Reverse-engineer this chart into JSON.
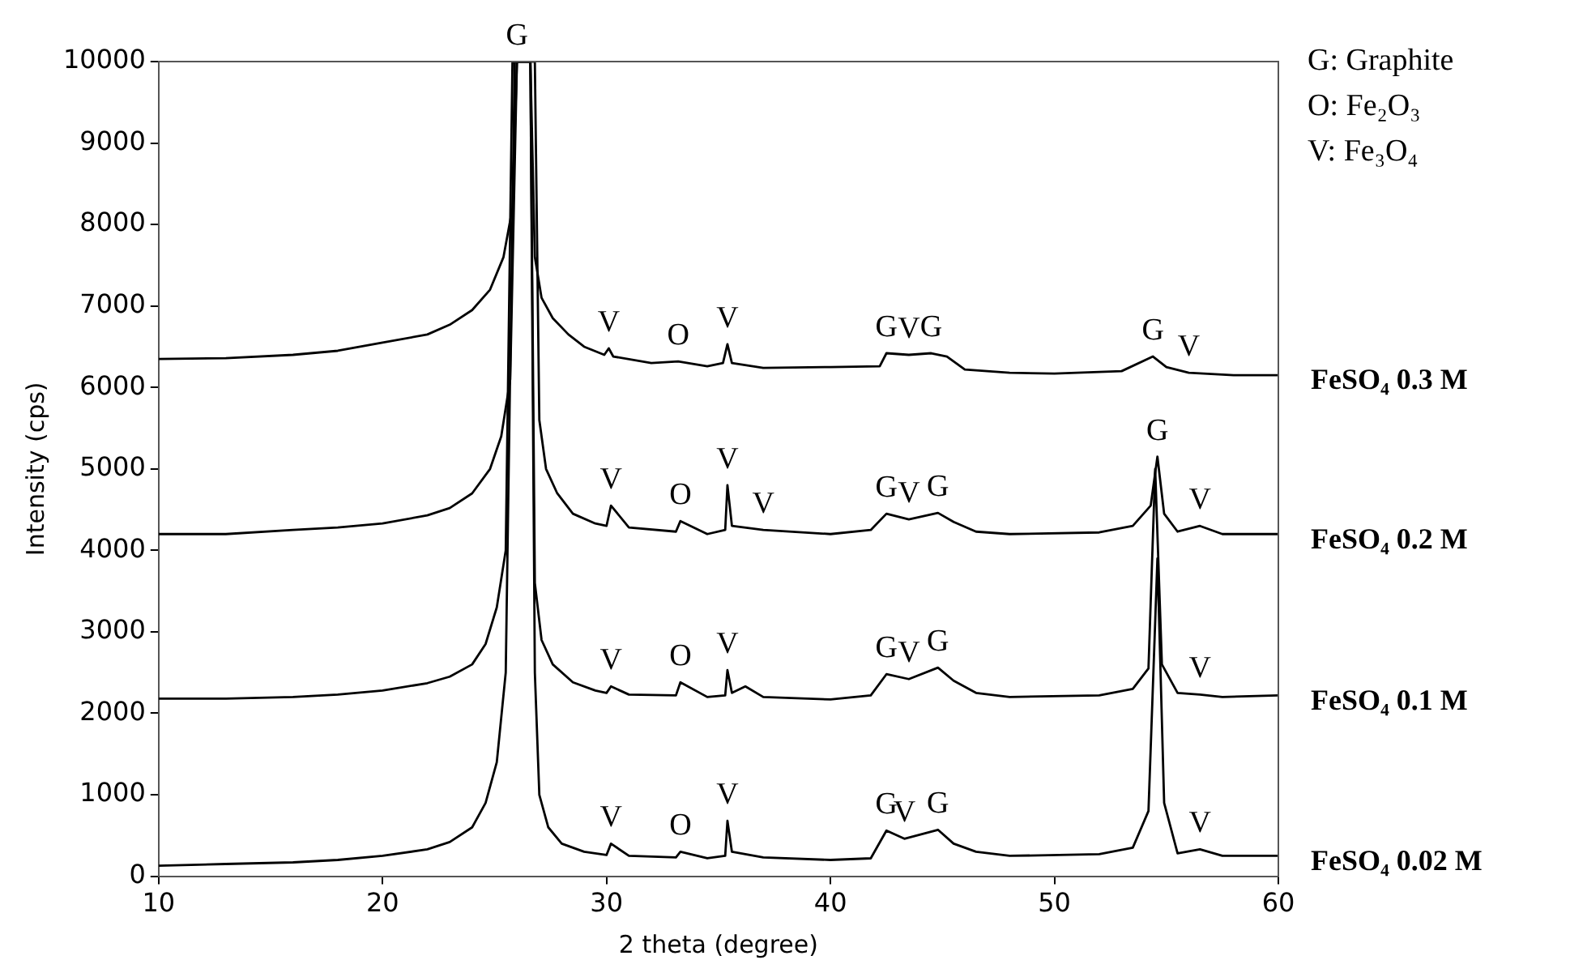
{
  "chart_data": {
    "type": "line",
    "xlabel": "2 theta (degree)",
    "ylabel": "Intensity (cps)",
    "xlim": [
      10,
      60
    ],
    "xticks": [
      10,
      20,
      30,
      40,
      50,
      60
    ],
    "ylim": [
      0,
      10000
    ],
    "yticks": [
      0,
      1000,
      2000,
      3000,
      4000,
      5000,
      6000,
      7000,
      8000,
      9000,
      10000
    ],
    "grid": false,
    "legend": false,
    "marker": "none",
    "line_style": "solid",
    "series": [
      {
        "name": "FeSO₄ 0.3 M",
        "color": "#000000",
        "x": [
          10,
          13,
          16,
          18,
          20,
          22,
          23,
          24,
          24.8,
          25.4,
          25.8,
          26.0,
          26.6,
          26.8,
          27.1,
          27.6,
          28.3,
          29,
          29.9,
          30.1,
          30.3,
          32,
          33.2,
          34.5,
          35.2,
          35.4,
          35.6,
          37,
          40,
          42.2,
          42.5,
          43.5,
          44.5,
          45.2,
          46,
          48,
          50,
          53,
          54.4,
          55,
          56,
          58,
          60
        ],
        "values": [
          6350,
          6360,
          6400,
          6450,
          6550,
          6650,
          6770,
          6950,
          7200,
          7600,
          8200,
          10000,
          10000,
          7600,
          7100,
          6850,
          6650,
          6500,
          6400,
          6480,
          6380,
          6300,
          6320,
          6260,
          6300,
          6530,
          6300,
          6240,
          6250,
          6260,
          6420,
          6400,
          6420,
          6380,
          6220,
          6180,
          6170,
          6200,
          6380,
          6250,
          6180,
          6150,
          6150
        ]
      },
      {
        "name": "FeSO₄ 0.2 M",
        "color": "#000000",
        "x": [
          10,
          13,
          16,
          18,
          20,
          22,
          23,
          24,
          24.8,
          25.3,
          25.7,
          26.0,
          26.8,
          27.0,
          27.3,
          27.8,
          28.5,
          29.5,
          30.0,
          30.2,
          31,
          33.1,
          33.3,
          34.5,
          35.3,
          35.4,
          35.6,
          37,
          40,
          41.8,
          42.5,
          43.5,
          44.8,
          45.5,
          46.5,
          48,
          52,
          53.5,
          54.3,
          54.6,
          54.9,
          55.5,
          56.5,
          57.5,
          60
        ],
        "values": [
          4200,
          4200,
          4250,
          4280,
          4330,
          4430,
          4520,
          4700,
          5000,
          5400,
          6100,
          10000,
          10000,
          5600,
          5000,
          4700,
          4450,
          4330,
          4300,
          4550,
          4280,
          4230,
          4360,
          4200,
          4250,
          4800,
          4300,
          4250,
          4200,
          4250,
          4450,
          4380,
          4460,
          4350,
          4230,
          4200,
          4220,
          4300,
          4550,
          5150,
          4450,
          4230,
          4300,
          4200,
          4200
        ]
      },
      {
        "name": "FeSO₄ 0.1 M",
        "color": "#000000",
        "x": [
          10,
          13,
          16,
          18,
          20,
          22,
          23,
          24,
          24.6,
          25.1,
          25.5,
          25.8,
          26.6,
          26.8,
          27.1,
          27.6,
          28.5,
          29.5,
          30.0,
          30.2,
          31,
          33.1,
          33.3,
          34.5,
          35.3,
          35.4,
          35.6,
          36.2,
          37,
          40,
          41.8,
          42.5,
          43.5,
          44.8,
          45.5,
          46.5,
          48,
          52,
          53.5,
          54.2,
          54.5,
          54.8,
          55.5,
          56.5,
          57.5,
          60
        ],
        "values": [
          2180,
          2180,
          2200,
          2230,
          2280,
          2370,
          2450,
          2600,
          2850,
          3300,
          4000,
          10000,
          10000,
          3600,
          2900,
          2600,
          2380,
          2280,
          2250,
          2330,
          2230,
          2220,
          2380,
          2200,
          2220,
          2530,
          2250,
          2330,
          2200,
          2170,
          2220,
          2480,
          2420,
          2560,
          2400,
          2250,
          2200,
          2220,
          2300,
          2550,
          5000,
          2600,
          2250,
          2230,
          2200,
          2220
        ]
      },
      {
        "name": "FeSO₄ 0.02 M",
        "color": "#000000",
        "x": [
          10,
          13,
          16,
          18,
          20,
          22,
          23,
          24,
          24.6,
          25.1,
          25.5,
          25.9,
          26.6,
          26.8,
          27.0,
          27.4,
          28,
          29,
          30.0,
          30.2,
          31,
          33.1,
          33.3,
          34.5,
          35.3,
          35.4,
          35.6,
          37,
          40,
          41.8,
          42.5,
          43.3,
          44.8,
          45.5,
          46.5,
          48,
          52,
          53.5,
          54.2,
          54.6,
          54.9,
          55.5,
          56.5,
          57.5,
          60
        ],
        "values": [
          130,
          150,
          170,
          200,
          250,
          330,
          420,
          600,
          900,
          1400,
          2500,
          10000,
          10000,
          2500,
          1000,
          600,
          400,
          300,
          260,
          400,
          250,
          230,
          300,
          220,
          250,
          680,
          300,
          230,
          200,
          220,
          560,
          460,
          570,
          400,
          300,
          250,
          270,
          350,
          800,
          3900,
          900,
          280,
          330,
          250,
          250
        ]
      }
    ],
    "annotations": [
      "G: Graphite",
      "O: Fe₂O₃",
      "V: Fe₃O₄",
      {
        "text": "G",
        "x": 26.0,
        "y": 10000
      },
      {
        "text": "V",
        "x": 30.1,
        "y": 6480
      },
      {
        "text": "O",
        "x": 33.2,
        "y": 6320
      },
      {
        "text": "V",
        "x": 35.4,
        "y": 6530
      },
      {
        "text": "G",
        "x": 42.5,
        "y": 6420
      },
      {
        "text": "V",
        "x": 43.5,
        "y": 6400
      },
      {
        "text": "G",
        "x": 44.5,
        "y": 6420
      },
      {
        "text": "G",
        "x": 54.4,
        "y": 6380
      },
      {
        "text": "V",
        "x": 56,
        "y": 6180
      },
      {
        "text": "V",
        "x": 30.2,
        "y": 4550
      },
      {
        "text": "O",
        "x": 33.3,
        "y": 4360
      },
      {
        "text": "V",
        "x": 35.4,
        "y": 4800
      },
      {
        "text": "V",
        "x": 37,
        "y": 4250
      },
      {
        "text": "G",
        "x": 42.5,
        "y": 4450
      },
      {
        "text": "V",
        "x": 43.5,
        "y": 4380
      },
      {
        "text": "G",
        "x": 44.8,
        "y": 4460
      },
      {
        "text": "G",
        "x": 54.6,
        "y": 5150
      },
      {
        "text": "V",
        "x": 56.5,
        "y": 4300
      },
      {
        "text": "V",
        "x": 30.2,
        "y": 2330
      },
      {
        "text": "O",
        "x": 33.3,
        "y": 2380
      },
      {
        "text": "V",
        "x": 35.4,
        "y": 2530
      },
      {
        "text": "G",
        "x": 42.5,
        "y": 2480
      },
      {
        "text": "V",
        "x": 43.5,
        "y": 2420
      },
      {
        "text": "G",
        "x": 44.8,
        "y": 2560
      },
      {
        "text": "V",
        "x": 56.5,
        "y": 2230
      },
      {
        "text": "V",
        "x": 30.2,
        "y": 400
      },
      {
        "text": "O",
        "x": 33.3,
        "y": 300
      },
      {
        "text": "V",
        "x": 35.4,
        "y": 680
      },
      {
        "text": "G",
        "x": 42.5,
        "y": 560
      },
      {
        "text": "V",
        "x": 43.3,
        "y": 460
      },
      {
        "text": "G",
        "x": 44.8,
        "y": 570
      },
      {
        "text": "V",
        "x": 56.5,
        "y": 330
      }
    ]
  }
}
